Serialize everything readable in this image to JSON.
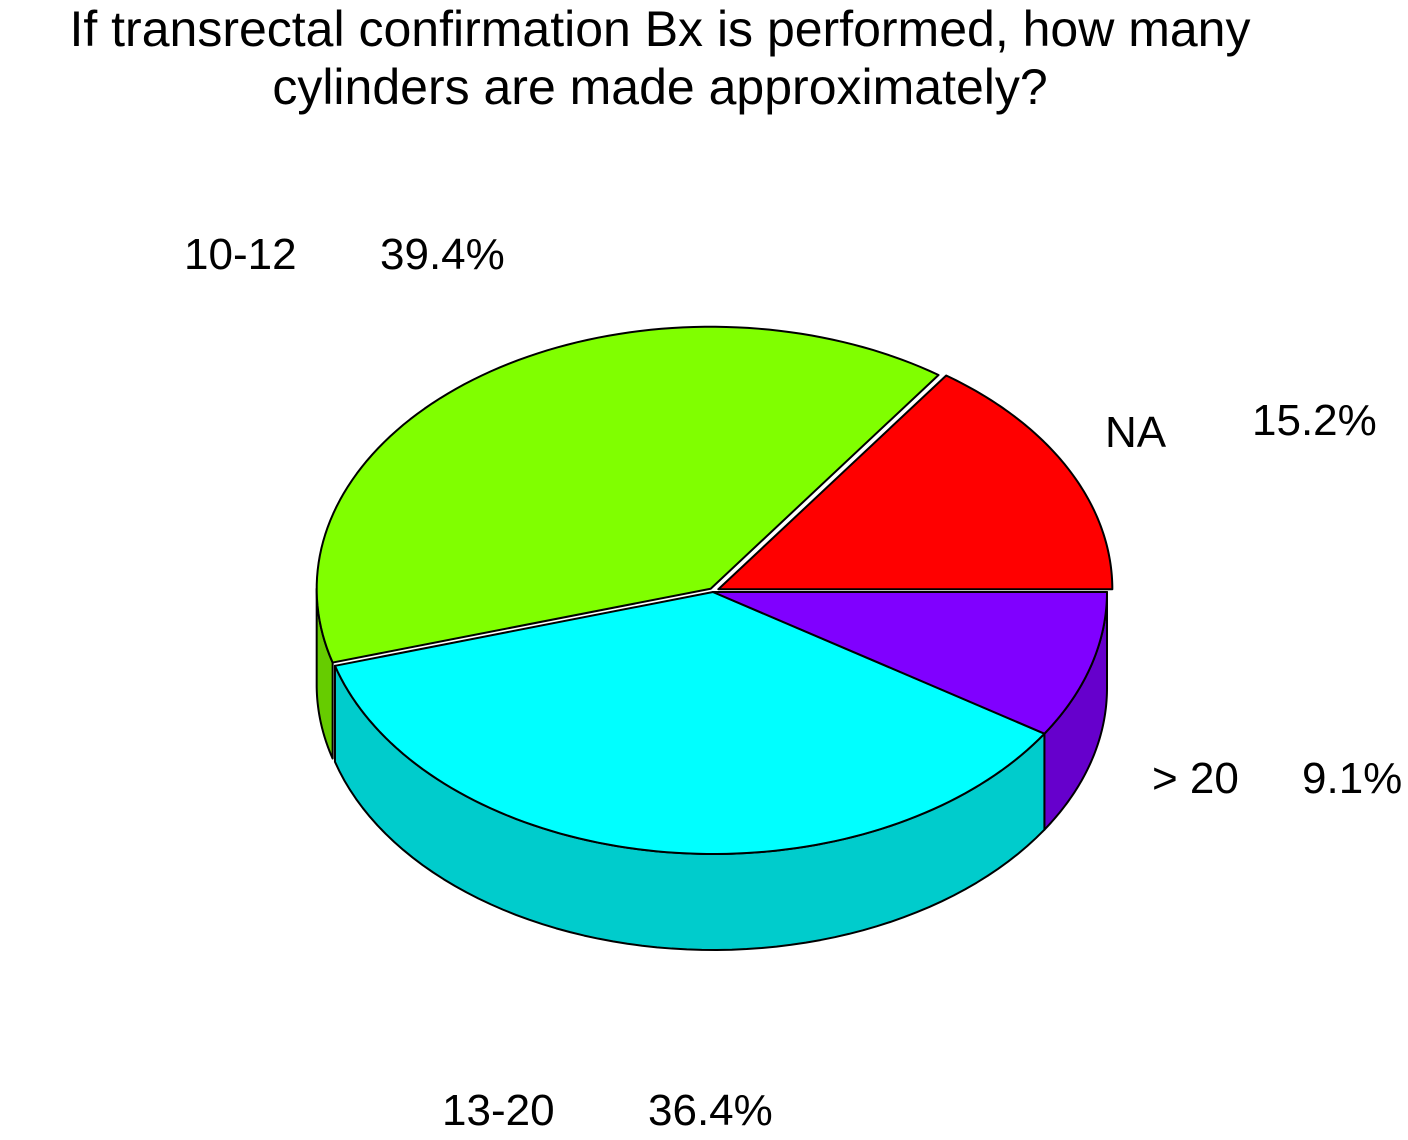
{
  "chart_data": {
    "type": "pie",
    "title_lines": [
      "If transrectal confirmation Bx is performed, how many",
      "cylinders are made approximately?"
    ],
    "slices": [
      {
        "name": "NA",
        "value": 15.2,
        "label": "15.2%",
        "color": "#ff0000",
        "side_color": "#cc0000"
      },
      {
        "name": "10-12",
        "value": 39.4,
        "label": "39.4%",
        "color": "#80ff00",
        "side_color": "#66cc00"
      },
      {
        "name": "13-20",
        "value": 36.4,
        "label": "36.4%",
        "color": "#00ffff",
        "side_color": "#00cccc"
      },
      {
        "name": "> 20",
        "value": 9.1,
        "label": "9.1%",
        "color": "#8000ff",
        "side_color": "#6600cc"
      }
    ],
    "style": "3d-pie",
    "exploded": [
      "NA",
      "10-12"
    ]
  }
}
